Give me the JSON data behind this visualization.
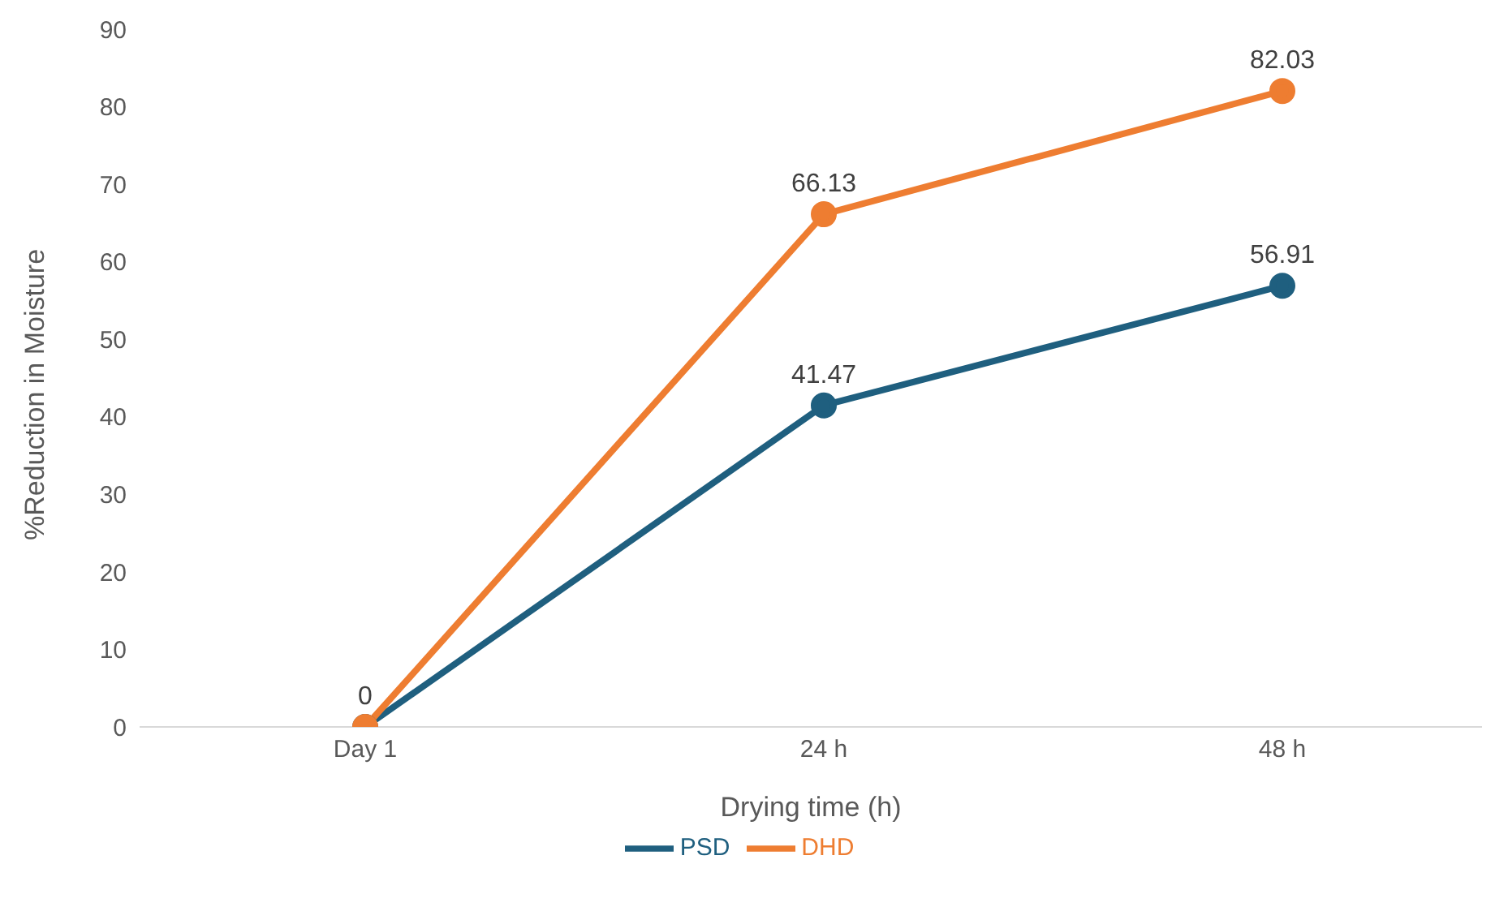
{
  "chart_data": {
    "type": "line",
    "xlabel": "Drying time (h)",
    "ylabel": "%Reduction in Moisture",
    "categories": [
      "Day 1",
      "24 h",
      "48 h"
    ],
    "series": [
      {
        "name": "PSD",
        "color": "#1f5f7f",
        "values": [
          0,
          41.47,
          56.91
        ],
        "value_labels": [
          "0",
          "41.47",
          "56.91"
        ]
      },
      {
        "name": "DHD",
        "color": "#ee7d31",
        "values": [
          0,
          66.13,
          82.03
        ],
        "value_labels": [
          null,
          "66.13",
          "82.03"
        ]
      }
    ],
    "ylim": [
      0,
      90
    ],
    "yticks": [
      0,
      10,
      20,
      30,
      40,
      50,
      60,
      70,
      80,
      90
    ],
    "grid": false,
    "legend": "bottom",
    "marker": "circle",
    "line_style": "solid"
  }
}
